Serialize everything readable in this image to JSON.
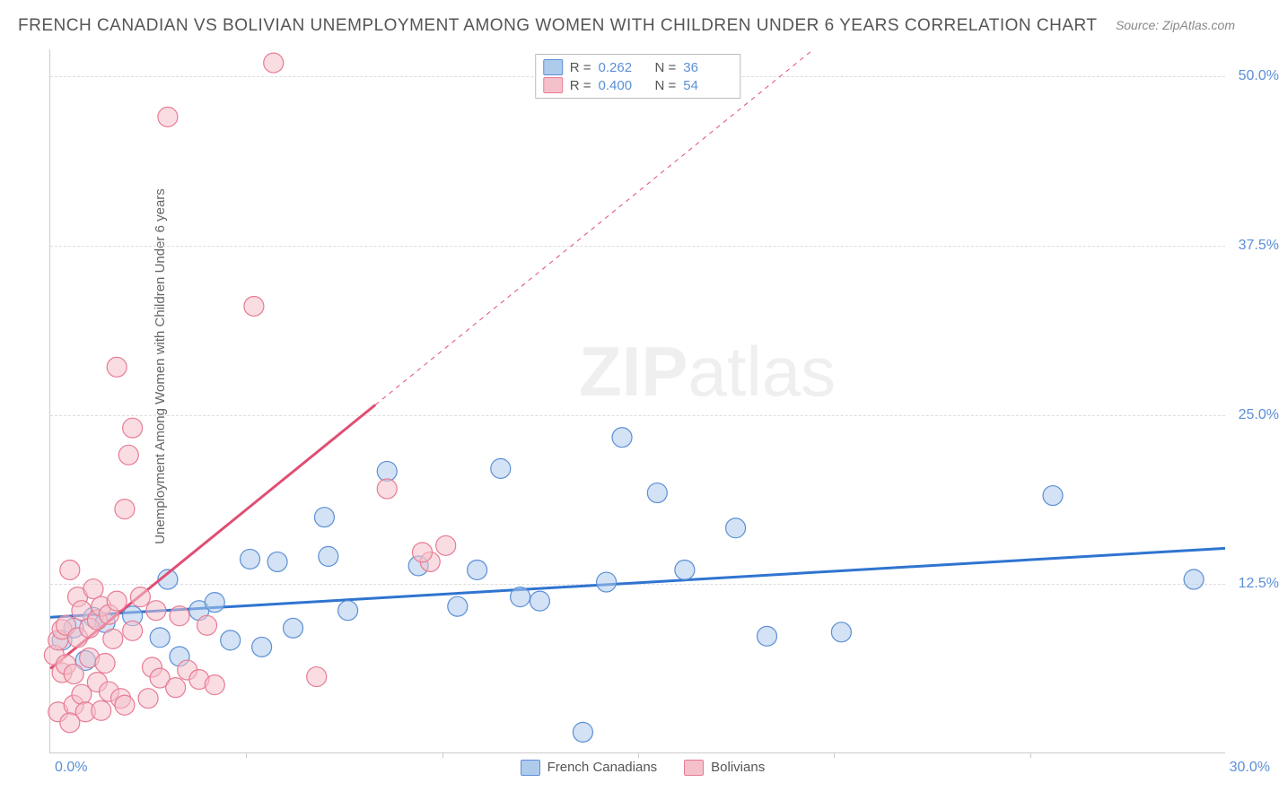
{
  "title": "FRENCH CANADIAN VS BOLIVIAN UNEMPLOYMENT AMONG WOMEN WITH CHILDREN UNDER 6 YEARS CORRELATION CHART",
  "source": "Source: ZipAtlas.com",
  "ylabel": "Unemployment Among Women with Children Under 6 years",
  "watermark_bold": "ZIP",
  "watermark_thin": "atlas",
  "chart": {
    "type": "scatter",
    "xlim": [
      0,
      30
    ],
    "ylim": [
      0,
      52
    ],
    "xtick_labels": {
      "start": "0.0%",
      "end": "30.0%"
    },
    "ytick_values": [
      12.5,
      25.0,
      37.5,
      50.0
    ],
    "ytick_labels": [
      "12.5%",
      "25.0%",
      "37.5%",
      "50.0%"
    ],
    "xtick_minor": [
      5,
      10,
      15,
      20,
      25
    ],
    "background_color": "#ffffff",
    "grid_color": "#dddddd",
    "axis_color": "#cccccc",
    "tick_label_color": "#5b8fd6",
    "label_fontsize": 15,
    "title_fontsize": 19,
    "marker_size": 11,
    "marker_opacity": 0.55,
    "series": [
      {
        "name": "French Canadians",
        "color_fill": "#aecbeb",
        "color_stroke": "#5b8fd6",
        "trend": {
          "slope": 0.17,
          "intercept": 10.0,
          "line_color": "#2f74d0",
          "line_width": 3,
          "dash_after_x": null
        },
        "R": "0.262",
        "N": "36",
        "points": [
          [
            0.3,
            8.3
          ],
          [
            0.6,
            9.2
          ],
          [
            0.9,
            6.8
          ],
          [
            1.1,
            10.0
          ],
          [
            1.4,
            9.6
          ],
          [
            2.1,
            10.1
          ],
          [
            2.8,
            8.5
          ],
          [
            3.0,
            12.8
          ],
          [
            3.3,
            7.1
          ],
          [
            3.8,
            10.5
          ],
          [
            4.2,
            11.1
          ],
          [
            4.6,
            8.3
          ],
          [
            5.1,
            14.3
          ],
          [
            5.4,
            7.8
          ],
          [
            5.8,
            14.1
          ],
          [
            6.2,
            9.2
          ],
          [
            7.0,
            17.4
          ],
          [
            7.1,
            14.5
          ],
          [
            7.6,
            10.5
          ],
          [
            8.6,
            20.8
          ],
          [
            9.4,
            13.8
          ],
          [
            10.4,
            10.8
          ],
          [
            10.9,
            13.5
          ],
          [
            11.5,
            21.0
          ],
          [
            12.0,
            11.5
          ],
          [
            12.5,
            11.2
          ],
          [
            14.2,
            12.6
          ],
          [
            14.6,
            23.3
          ],
          [
            15.5,
            19.2
          ],
          [
            16.2,
            13.5
          ],
          [
            17.5,
            16.6
          ],
          [
            18.3,
            8.6
          ],
          [
            20.2,
            8.9
          ],
          [
            25.6,
            19.0
          ],
          [
            29.2,
            12.8
          ],
          [
            13.6,
            1.5
          ]
        ]
      },
      {
        "name": "Bolivians",
        "color_fill": "#f4c1cb",
        "color_stroke": "#e87b94",
        "trend": {
          "slope": 2.35,
          "intercept": 6.2,
          "line_color": "#e04e73",
          "line_width": 3,
          "dash_after_x": 8.3
        },
        "R": "0.400",
        "N": "54",
        "points": [
          [
            0.1,
            7.2
          ],
          [
            0.2,
            3.0
          ],
          [
            0.2,
            8.3
          ],
          [
            0.3,
            5.9
          ],
          [
            0.3,
            9.1
          ],
          [
            0.4,
            6.5
          ],
          [
            0.4,
            9.4
          ],
          [
            0.5,
            13.5
          ],
          [
            0.6,
            3.5
          ],
          [
            0.6,
            5.8
          ],
          [
            0.7,
            8.5
          ],
          [
            0.7,
            11.5
          ],
          [
            0.8,
            4.3
          ],
          [
            0.8,
            10.5
          ],
          [
            0.9,
            3.0
          ],
          [
            1.0,
            7.0
          ],
          [
            1.0,
            9.2
          ],
          [
            1.1,
            12.1
          ],
          [
            1.2,
            5.2
          ],
          [
            1.2,
            9.8
          ],
          [
            1.3,
            3.1
          ],
          [
            1.3,
            10.8
          ],
          [
            1.4,
            6.6
          ],
          [
            1.5,
            10.2
          ],
          [
            1.5,
            4.5
          ],
          [
            1.6,
            8.4
          ],
          [
            1.7,
            11.2
          ],
          [
            1.7,
            28.5
          ],
          [
            1.8,
            4.0
          ],
          [
            1.9,
            3.5
          ],
          [
            1.9,
            18.0
          ],
          [
            2.0,
            22.0
          ],
          [
            2.1,
            9.0
          ],
          [
            2.1,
            24.0
          ],
          [
            2.3,
            11.5
          ],
          [
            2.5,
            4.0
          ],
          [
            2.6,
            6.3
          ],
          [
            2.7,
            10.5
          ],
          [
            2.8,
            5.5
          ],
          [
            3.0,
            47.0
          ],
          [
            3.2,
            4.8
          ],
          [
            3.3,
            10.1
          ],
          [
            3.5,
            6.1
          ],
          [
            3.8,
            5.4
          ],
          [
            4.0,
            9.4
          ],
          [
            4.2,
            5.0
          ],
          [
            5.2,
            33.0
          ],
          [
            5.7,
            51.0
          ],
          [
            6.8,
            5.6
          ],
          [
            8.6,
            19.5
          ],
          [
            9.7,
            14.1
          ],
          [
            9.5,
            14.8
          ],
          [
            10.1,
            15.3
          ],
          [
            0.5,
            2.2
          ]
        ]
      }
    ]
  },
  "legend_top": {
    "r_label": "R =",
    "n_label": "N ="
  },
  "legend_bottom": {
    "items": [
      "French Canadians",
      "Bolivians"
    ]
  }
}
